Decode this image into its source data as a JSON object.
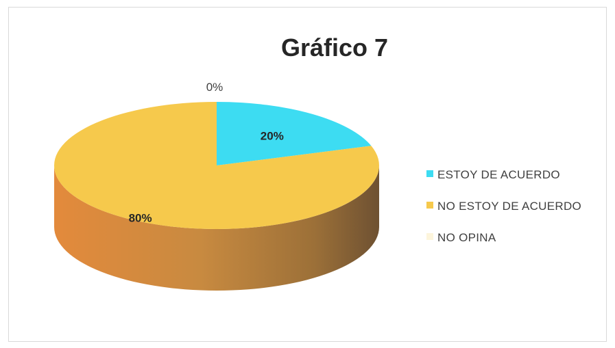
{
  "chart_data": {
    "type": "pie",
    "title": "Gráfico 7",
    "categories": [
      "ESTOY DE ACUERDO",
      "NO ESTOY DE ACUERDO",
      "NO OPINA"
    ],
    "values": [
      20,
      80,
      0
    ],
    "data_labels": [
      "20%",
      "80%",
      "0%"
    ],
    "colors": [
      "#3ddcf2",
      "#f6c94c",
      "#fdf5dc"
    ],
    "legend_position": "right",
    "style": "3d-pie"
  }
}
